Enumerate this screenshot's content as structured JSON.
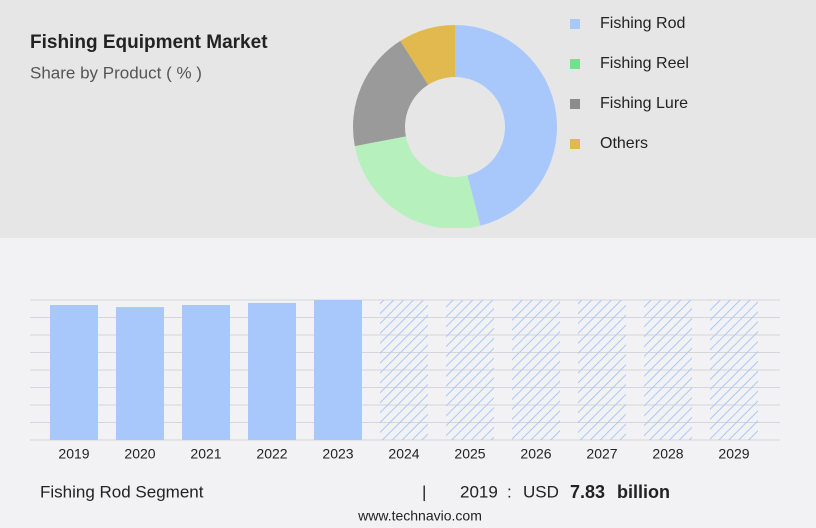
{
  "chart_data": [
    {
      "type": "pie",
      "title": "Fishing Equipment Market",
      "subtitle": "Share by Product ( % )",
      "categories": [
        "Fishing Rod",
        "Fishing Reel",
        "Fishing Lure",
        "Others"
      ],
      "values": [
        46,
        26,
        19,
        9
      ],
      "colors": [
        "#a8c8fc",
        "#b6f0bc",
        "#9a9a9a",
        "#e1b94f"
      ],
      "legend_colors": [
        "#a8c8fc",
        "#6fe38c",
        "#8c8c8c",
        "#e1b94f"
      ]
    },
    {
      "type": "bar",
      "categories": [
        "2019",
        "2020",
        "2021",
        "2022",
        "2023",
        "2024",
        "2025",
        "2026",
        "2027",
        "2028",
        "2029"
      ],
      "values": [
        7.83,
        7.71,
        7.83,
        7.95,
        8.12,
        null,
        null,
        null,
        null,
        null,
        null
      ],
      "color": "#a8c8fc",
      "ylim": [
        0,
        8.12
      ],
      "grid": true
    }
  ],
  "footer": {
    "segment": "Fishing Rod Segment",
    "year": "2019",
    "currency": "USD",
    "value": 7.83,
    "unit": "billion",
    "source": "www.technavio.com"
  }
}
